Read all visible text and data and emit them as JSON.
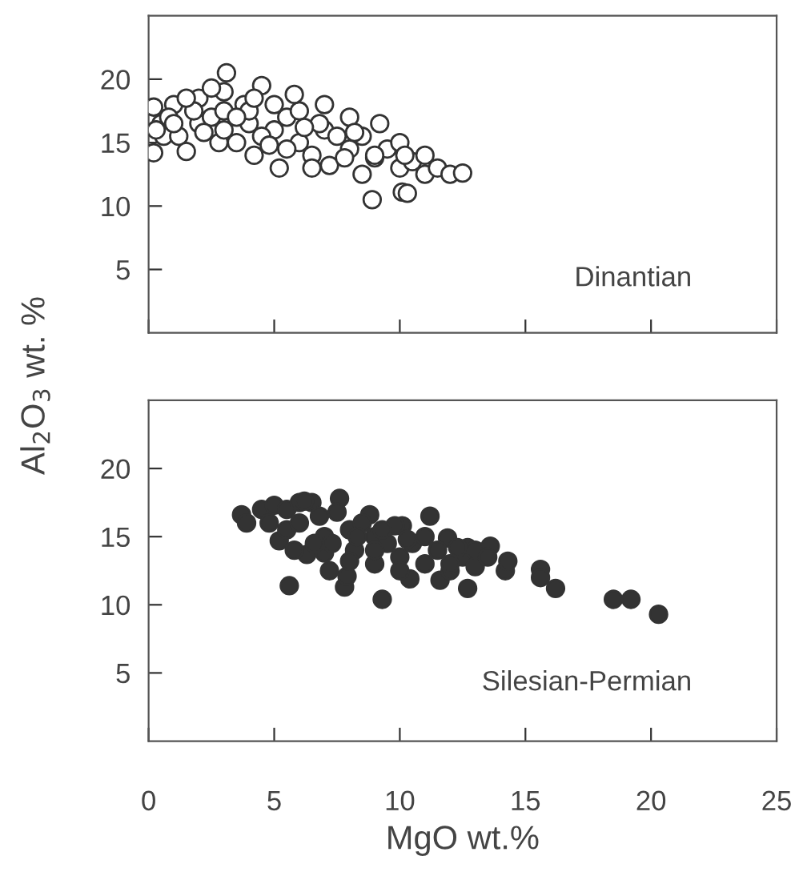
{
  "chart_data": [
    {
      "type": "scatter",
      "annotations": [
        "Dinantian"
      ],
      "xlim": [
        0,
        25
      ],
      "ylim": [
        0,
        25
      ],
      "xticks": [
        0,
        5,
        10,
        15,
        20,
        25
      ],
      "yticks": [
        5,
        10,
        15,
        20
      ],
      "tick_labels": "y",
      "marker": "circle",
      "grid": false,
      "series": [
        {
          "color": "#ffffff",
          "x": [
            0.2,
            0.2,
            0.5,
            0.6,
            1.0,
            1.2,
            1.5,
            2.0,
            2.0,
            2.5,
            3.0,
            3.0,
            3.1,
            3.5,
            3.8,
            4.0,
            4.2,
            4.5,
            5.0,
            5.0,
            5.2,
            5.5,
            6.0,
            6.0,
            6.5,
            7.0,
            7.0,
            7.2,
            7.5,
            8.0,
            8.0,
            8.5,
            8.5,
            9.0,
            9.2,
            8.9,
            9.5,
            10.1,
            10.0,
            10.0,
            10.3,
            10.5,
            11.0,
            11.5,
            12.0,
            12.5,
            0.8,
            1.8,
            2.8,
            4.5,
            5.5,
            6.8,
            3.0,
            4.0,
            9.0,
            10.2,
            11.0,
            1.0,
            2.2,
            3.5,
            4.8,
            6.2,
            7.8,
            2.5,
            5.8,
            0.3,
            1.5,
            4.2,
            6.5,
            8.2
          ],
          "values": [
            14.2,
            17.8,
            16.5,
            15.5,
            18.0,
            15.5,
            14.3,
            16.5,
            18.5,
            17.0,
            19.0,
            17.5,
            20.5,
            15.0,
            18.0,
            16.5,
            14.0,
            19.5,
            18.0,
            16.0,
            13.0,
            17.0,
            15.0,
            17.5,
            14.0,
            16.0,
            18.0,
            13.2,
            15.5,
            17.0,
            14.5,
            12.5,
            15.5,
            13.8,
            16.5,
            10.5,
            14.5,
            11.1,
            13.0,
            15.0,
            11.0,
            13.5,
            12.5,
            13.0,
            12.5,
            12.6,
            17.0,
            17.5,
            15.0,
            15.5,
            14.5,
            16.5,
            16.0,
            17.5,
            14.0,
            14.0,
            14.0,
            16.5,
            15.8,
            17.0,
            14.8,
            16.2,
            13.8,
            19.3,
            18.8,
            16.0,
            18.5,
            18.5,
            13.0,
            15.8
          ]
        }
      ]
    },
    {
      "type": "scatter",
      "annotations": [
        "Silesian-Permian"
      ],
      "xlabel": "MgO wt.%",
      "ylabel": "Al$_{2}$O$_{3}$ wt. %",
      "xlim": [
        0,
        25
      ],
      "ylim": [
        0,
        25
      ],
      "xticks": [
        0,
        5,
        10,
        15,
        20,
        25
      ],
      "yticks": [
        5,
        10,
        15,
        20
      ],
      "marker": "circle",
      "grid": false,
      "series": [
        {
          "color": "#333333",
          "x": [
            3.7,
            3.9,
            4.5,
            5.0,
            5.5,
            6.0,
            6.5,
            5.6,
            7.8,
            9.3,
            11.2,
            12.7,
            15.6,
            15.6,
            16.2,
            18.5,
            19.2,
            20.3,
            7.2,
            7.9,
            10.4,
            11.6,
            14.2,
            14.3,
            13.6,
            7.6,
            6.2,
            8.8,
            10.1,
            11.9,
            12.7,
            5.2,
            6.3,
            4.8,
            5.5,
            6.8,
            7.0,
            7.5,
            8.0,
            8.2,
            8.5,
            9.0,
            9.0,
            9.5,
            9.8,
            10.0,
            10.5,
            11.0,
            11.0,
            11.5,
            12.0,
            12.5,
            13.0,
            13.0,
            13.5,
            6.0,
            7.0,
            8.0,
            9.0,
            10.0,
            12.0,
            5.8,
            6.6,
            7.3,
            8.3,
            9.3,
            10.3,
            12.3
          ],
          "values": [
            16.6,
            16.0,
            17.0,
            17.3,
            17.0,
            17.5,
            17.5,
            11.4,
            11.3,
            10.4,
            16.5,
            11.2,
            12.6,
            12.0,
            11.2,
            10.4,
            10.4,
            9.3,
            12.5,
            12.1,
            11.9,
            11.8,
            12.5,
            13.2,
            14.3,
            17.8,
            17.6,
            16.6,
            15.8,
            14.9,
            14.2,
            14.7,
            13.7,
            16.0,
            15.5,
            16.5,
            15.0,
            16.8,
            15.5,
            14.0,
            16.0,
            15.0,
            13.0,
            14.5,
            15.8,
            13.5,
            14.5,
            15.0,
            13.0,
            14.0,
            12.5,
            13.5,
            14.0,
            12.8,
            13.5,
            16.0,
            13.8,
            13.2,
            14.0,
            12.5,
            13.0,
            14.0,
            14.5,
            14.5,
            15.0,
            15.5,
            14.8,
            14.2
          ]
        }
      ]
    }
  ]
}
